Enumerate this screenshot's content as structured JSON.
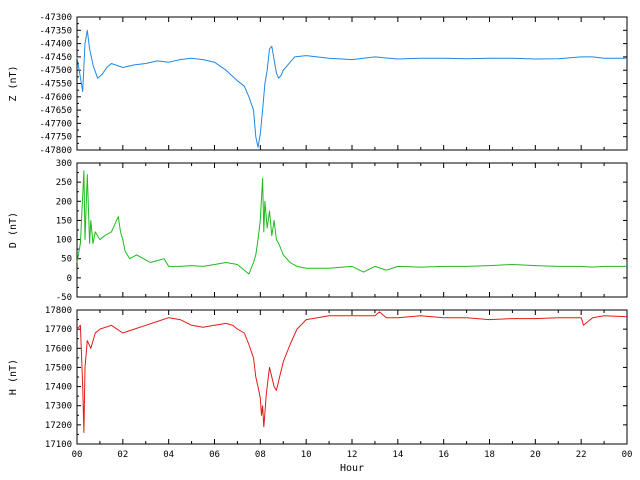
{
  "chart_data": [
    {
      "type": "line",
      "ylabel": "Z (nT)",
      "ylim": [
        -47800,
        -47300
      ],
      "yticks": [
        -47800,
        -47750,
        -47700,
        -47650,
        -47600,
        -47550,
        -47500,
        -47450,
        -47400,
        -47350,
        -47300
      ],
      "xlim": [
        0,
        24
      ],
      "color": "#1e88e5",
      "series": [
        {
          "x": [
            0,
            0.25,
            0.35,
            0.45,
            0.55,
            0.7,
            0.9,
            1.1,
            1.3,
            1.5,
            2.0,
            2.5,
            3.0,
            3.5,
            4.0,
            4.5,
            5.0,
            5.5,
            6.0,
            6.5,
            7.0,
            7.3,
            7.5,
            7.7,
            7.8,
            7.9,
            8.0,
            8.1,
            8.2,
            8.3,
            8.4,
            8.5,
            8.6,
            8.7,
            8.8,
            8.9,
            9.0,
            9.2,
            9.5,
            10,
            11,
            12,
            13,
            14,
            15,
            16,
            17,
            18,
            19,
            20,
            21,
            22,
            22.5,
            23,
            24
          ],
          "values": [
            -47450,
            -47580,
            -47400,
            -47350,
            -47420,
            -47480,
            -47530,
            -47515,
            -47490,
            -47475,
            -47490,
            -47480,
            -47475,
            -47465,
            -47470,
            -47460,
            -47455,
            -47460,
            -47470,
            -47500,
            -47540,
            -47560,
            -47600,
            -47650,
            -47750,
            -47790,
            -47740,
            -47650,
            -47550,
            -47500,
            -47420,
            -47410,
            -47460,
            -47510,
            -47530,
            -47520,
            -47500,
            -47480,
            -47450,
            -47445,
            -47455,
            -47460,
            -47450,
            -47458,
            -47455,
            -47455,
            -47457,
            -47455,
            -47455,
            -47458,
            -47457,
            -47450,
            -47450,
            -47455,
            -47455
          ]
        }
      ]
    },
    {
      "type": "line",
      "ylabel": "D (nT)",
      "ylim": [
        -50,
        300
      ],
      "yticks": [
        -50,
        0,
        50,
        100,
        150,
        200,
        250,
        300
      ],
      "xlim": [
        0,
        24
      ],
      "color": "#1fba1f",
      "series": [
        {
          "x": [
            0,
            0.15,
            0.3,
            0.35,
            0.45,
            0.55,
            0.6,
            0.7,
            0.8,
            1.0,
            1.2,
            1.5,
            1.8,
            1.9,
            2.0,
            2.1,
            2.3,
            2.6,
            2.9,
            3.2,
            3.5,
            3.8,
            4.0,
            4.5,
            5.0,
            5.5,
            6.0,
            6.5,
            7.0,
            7.3,
            7.5,
            7.7,
            7.8,
            7.9,
            8.0,
            8.1,
            8.15,
            8.2,
            8.3,
            8.4,
            8.5,
            8.6,
            8.7,
            8.8,
            9.0,
            9.3,
            9.6,
            10,
            11,
            12,
            12.5,
            13,
            13.5,
            14,
            15,
            16,
            17,
            18,
            19,
            20,
            21,
            22,
            22.5,
            23,
            24
          ],
          "values": [
            40,
            90,
            280,
            100,
            270,
            90,
            150,
            90,
            120,
            100,
            110,
            120,
            160,
            120,
            100,
            70,
            50,
            60,
            50,
            40,
            45,
            50,
            30,
            30,
            32,
            30,
            35,
            40,
            35,
            20,
            10,
            40,
            60,
            100,
            150,
            260,
            120,
            200,
            130,
            175,
            110,
            150,
            100,
            90,
            60,
            40,
            30,
            25,
            25,
            30,
            15,
            30,
            20,
            30,
            28,
            30,
            30,
            32,
            35,
            32,
            30,
            30,
            28,
            30,
            30
          ]
        }
      ]
    },
    {
      "type": "line",
      "ylabel": "H (nT)",
      "xlabel": "Hour",
      "ylim": [
        17100,
        17800
      ],
      "yticks": [
        17100,
        17200,
        17300,
        17400,
        17500,
        17600,
        17700,
        17800
      ],
      "xlim": [
        0,
        24
      ],
      "xtick_labels": [
        "00",
        "02",
        "04",
        "06",
        "08",
        "10",
        "12",
        "14",
        "16",
        "18",
        "20",
        "22",
        "00"
      ],
      "color": "#e31a1a",
      "series": [
        {
          "x": [
            0,
            0.15,
            0.25,
            0.3,
            0.35,
            0.45,
            0.6,
            0.8,
            1.0,
            1.5,
            2.0,
            2.5,
            3.0,
            3.5,
            4.0,
            4.5,
            5.0,
            5.5,
            6.0,
            6.5,
            6.8,
            7.0,
            7.3,
            7.5,
            7.7,
            7.8,
            7.9,
            8.0,
            8.05,
            8.1,
            8.15,
            8.2,
            8.25,
            8.3,
            8.4,
            8.5,
            8.6,
            8.7,
            8.8,
            9.0,
            9.3,
            9.6,
            10,
            10.5,
            11,
            12,
            13,
            13.2,
            13.5,
            14,
            15,
            16,
            17,
            18,
            19,
            20,
            21,
            22,
            22.1,
            22.5,
            23,
            24
          ],
          "values": [
            17700,
            17720,
            17400,
            17160,
            17500,
            17640,
            17600,
            17680,
            17700,
            17720,
            17680,
            17700,
            17720,
            17740,
            17760,
            17750,
            17720,
            17710,
            17720,
            17730,
            17720,
            17700,
            17680,
            17620,
            17550,
            17450,
            17400,
            17340,
            17250,
            17300,
            17190,
            17260,
            17350,
            17400,
            17500,
            17450,
            17400,
            17380,
            17430,
            17530,
            17620,
            17700,
            17750,
            17760,
            17770,
            17770,
            17770,
            17790,
            17760,
            17760,
            17770,
            17760,
            17760,
            17750,
            17755,
            17755,
            17760,
            17760,
            17720,
            17760,
            17770,
            17765
          ]
        }
      ]
    }
  ]
}
